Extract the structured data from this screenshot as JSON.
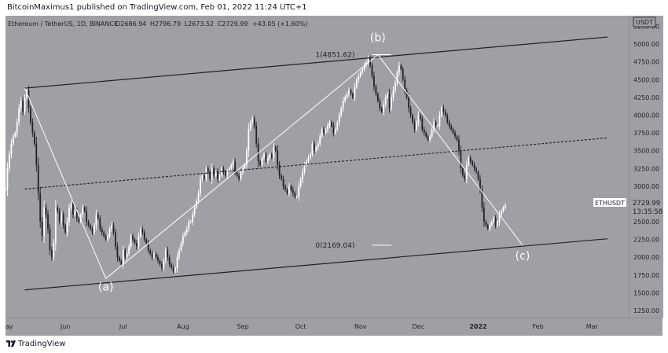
{
  "header": {
    "publish_text": "BitcoinMaximus1 published on TradingView.com, Feb 01, 2022 11:24 UTC+1"
  },
  "footer": {
    "logo_icon": "tradingview-logo-icon",
    "brand": "TradingView"
  },
  "colors": {
    "panel_bg": "#9fa0a5",
    "candle_up": "#ffffff",
    "candle_down": "#1e2126",
    "channel_line": "#1e2126",
    "wave_line": "#ffffff",
    "text": "#1e2126"
  },
  "chart_data": {
    "type": "candlestick",
    "symbol_line": "Ethereum / TetherUS, 1D, BINANCE",
    "ohlc": {
      "o_label": "O",
      "o": "2686.94",
      "h_label": "H",
      "h": "2796.79",
      "l_label": "L",
      "l": "2673.52",
      "c_label": "C",
      "c": "2729.99",
      "change": "+43.05 (+1.60%)"
    },
    "currency": "USDT",
    "y_ticks": [
      "5250.00",
      "5000.00",
      "4750.00",
      "4500.00",
      "4250.00",
      "4000.00",
      "3750.00",
      "3500.00",
      "3250.00",
      "3000.00",
      "2750.00",
      "2500.00",
      "2250.00",
      "2000.00",
      "1750.00",
      "1500.00",
      "1250.00"
    ],
    "y_tick_values": [
      5250,
      5000,
      4750,
      4500,
      4250,
      4000,
      3750,
      3500,
      3250,
      3000,
      2750,
      2500,
      2250,
      2000,
      1750,
      1500,
      1250
    ],
    "x_ticks": [
      "ay",
      "Jun",
      "Jul",
      "Aug",
      "Sep",
      "Oct",
      "Nov",
      "Dec",
      "2022",
      "Feb",
      "Mar"
    ],
    "x_tick_dates": [
      "2021-05-01",
      "2021-06-01",
      "2021-07-01",
      "2021-08-01",
      "2021-09-01",
      "2021-10-01",
      "2021-11-01",
      "2021-12-01",
      "2022-01-01",
      "2022-02-01",
      "2022-03-01"
    ],
    "ylim": [
      1150,
      5400
    ],
    "xlim": [
      "2021-05-01",
      "2022-03-20"
    ],
    "last_price_label": {
      "symbol": "ETHUSDT",
      "price": "2729.99",
      "countdown": "13:35:58"
    },
    "closes_series": {
      "start_date": "2021-05-01",
      "step_days": 1,
      "values": [
        2950,
        3250,
        3450,
        3600,
        3700,
        3750,
        3900,
        4100,
        4200,
        4050,
        4250,
        4350,
        4100,
        3900,
        3750,
        3600,
        3300,
        2900,
        2500,
        2300,
        2700,
        2600,
        2400,
        2100,
        2000,
        2200,
        2700,
        2650,
        2500,
        2600,
        2450,
        2350,
        2500,
        2700,
        2750,
        2600,
        2650,
        2550,
        2500,
        2600,
        2700,
        2650,
        2500,
        2450,
        2400,
        2350,
        2450,
        2600,
        2550,
        2400,
        2350,
        2300,
        2250,
        2300,
        2400,
        2450,
        2350,
        2150,
        2000,
        1950,
        1900,
        2100,
        2000,
        2050,
        2150,
        2300,
        2250,
        2200,
        2150,
        2300,
        2400,
        2350,
        2250,
        2200,
        2100,
        2050,
        2000,
        2050,
        2000,
        1950,
        1900,
        1850,
        1950,
        2100,
        2000,
        1900,
        1850,
        1800,
        1850,
        2000,
        2100,
        2200,
        2300,
        2350,
        2400,
        2500,
        2500,
        2600,
        2700,
        2800,
        2900,
        3100,
        3150,
        3100,
        3250,
        3200,
        3100,
        3250,
        3150,
        3200,
        3100,
        3150,
        3250,
        3200,
        3150,
        3200,
        3250,
        3300,
        3350,
        3200,
        3150,
        3100,
        3200,
        3250,
        3300,
        3500,
        3800,
        3900,
        3950,
        3850,
        3600,
        3350,
        3300,
        3400,
        3450,
        3350,
        3400,
        3450,
        3400,
        3550,
        3500,
        3300,
        3150,
        3100,
        3000,
        2950,
        2900,
        3000,
        2950,
        2900,
        2850,
        2850,
        3000,
        3100,
        3200,
        3300,
        3350,
        3400,
        3450,
        3600,
        3500,
        3550,
        3600,
        3700,
        3800,
        3750,
        3800,
        3850,
        3900,
        3850,
        3750,
        3800,
        3900,
        4000,
        4100,
        4200,
        4250,
        4300,
        4350,
        4300,
        4250,
        4400,
        4500,
        4550,
        4600,
        4650,
        4700,
        4750,
        4800,
        4700,
        4550,
        4400,
        4300,
        4200,
        4100,
        4050,
        4150,
        4250,
        4300,
        4100,
        4250,
        4350,
        4450,
        4600,
        4700,
        4650,
        4500,
        4350,
        4250,
        4100,
        4000,
        3900,
        3800,
        3900,
        4000,
        3950,
        3800,
        3750,
        3700,
        3650,
        3700,
        3800,
        3900,
        3850,
        3850,
        4000,
        4100,
        4050,
        4000,
        3900,
        3850,
        3800,
        3750,
        3700,
        3650,
        3500,
        3250,
        3150,
        3100,
        3300,
        3400,
        3350,
        3300,
        3250,
        3200,
        3100,
        2950,
        2700,
        2500,
        2450,
        2400,
        2450,
        2500,
        2550,
        2450,
        2500,
        2600,
        2650,
        2700,
        2730
      ]
    },
    "annotations": {
      "a": "(a)",
      "b": "(b)",
      "c": "(c)",
      "fib_top": "1(4851.62)",
      "fib_bottom": "0(2169.04)"
    },
    "points": {
      "ch_top_start": {
        "date": "2021-05-11",
        "price": 4380
      },
      "ch_top_end": {
        "date": "2022-03-09",
        "price": 5100
      },
      "ch_mid_start": {
        "date": "2021-05-11",
        "price": 2960
      },
      "ch_mid_end": {
        "date": "2022-03-09",
        "price": 3680
      },
      "ch_bot_start": {
        "date": "2021-05-11",
        "price": 1540
      },
      "ch_bot_end": {
        "date": "2022-03-09",
        "price": 2260
      },
      "wave_1": {
        "date": "2021-05-11",
        "price": 4380
      },
      "wave_2": {
        "date": "2021-06-22",
        "price": 1700
      },
      "wave_3": {
        "date": "2021-11-10",
        "price": 4851.62
      },
      "wave_4": {
        "date": "2022-01-24",
        "price": 2169.04
      },
      "fib_top_line_start": {
        "date": "2021-11-07",
        "price": 4851.62
      },
      "fib_top_line_end": {
        "date": "2021-11-17",
        "price": 4851.62
      },
      "fib_bot_line_start": {
        "date": "2021-11-07",
        "price": 2169.04
      },
      "fib_bot_line_end": {
        "date": "2021-11-17",
        "price": 2169.04
      },
      "label_a": {
        "date": "2021-06-22",
        "price": 1530
      },
      "label_b": {
        "date": "2021-11-10",
        "price": 5040
      },
      "label_c": {
        "date": "2022-01-24",
        "price": 1970
      },
      "label_fib_top": {
        "date": "2021-10-29",
        "price": 4851.62
      },
      "label_fib_bottom": {
        "date": "2021-10-29",
        "price": 2169.04
      }
    }
  }
}
